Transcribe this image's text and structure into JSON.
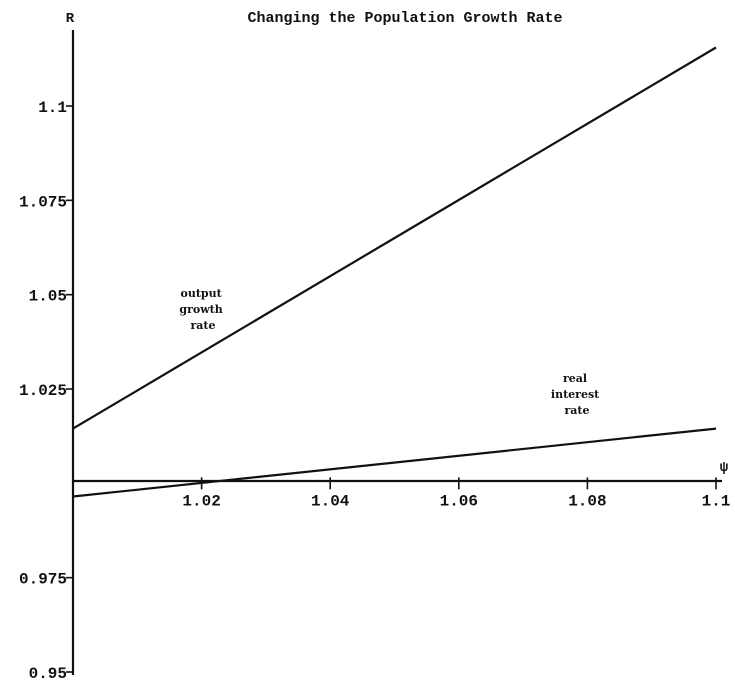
{
  "chart_data": {
    "type": "line",
    "title": "Changing the Population Growth Rate",
    "xlabel": "ψ",
    "ylabel": "R",
    "xlim": [
      1.0,
      1.1
    ],
    "ylim": [
      0.95,
      1.12
    ],
    "x_ticks": [
      1.02,
      1.04,
      1.06,
      1.08,
      1.1
    ],
    "x_tick_labels": [
      "1.02",
      "1.04",
      "1.06",
      "1.08",
      "1.1"
    ],
    "y_ticks": [
      0.95,
      0.975,
      1.025,
      1.05,
      1.075,
      1.1
    ],
    "y_tick_labels": [
      "0.95",
      "0.975",
      "1.025",
      "1.05",
      "1.075",
      "1.1"
    ],
    "x_axis_crossing_y": 1.0,
    "grid": false,
    "legend": "none",
    "series": [
      {
        "name": "output growth rate",
        "x": [
          1.0,
          1.1
        ],
        "y": [
          1.0145,
          1.1155
        ]
      },
      {
        "name": "real interest rate",
        "x": [
          1.0,
          1.1
        ],
        "y": [
          0.9965,
          1.0145
        ]
      }
    ],
    "annotations": [
      {
        "lines": [
          "output",
          "growth",
          "rate"
        ],
        "series": "output growth rate"
      },
      {
        "lines": [
          "real",
          "interest",
          "rate"
        ],
        "series": "real interest rate"
      }
    ]
  }
}
